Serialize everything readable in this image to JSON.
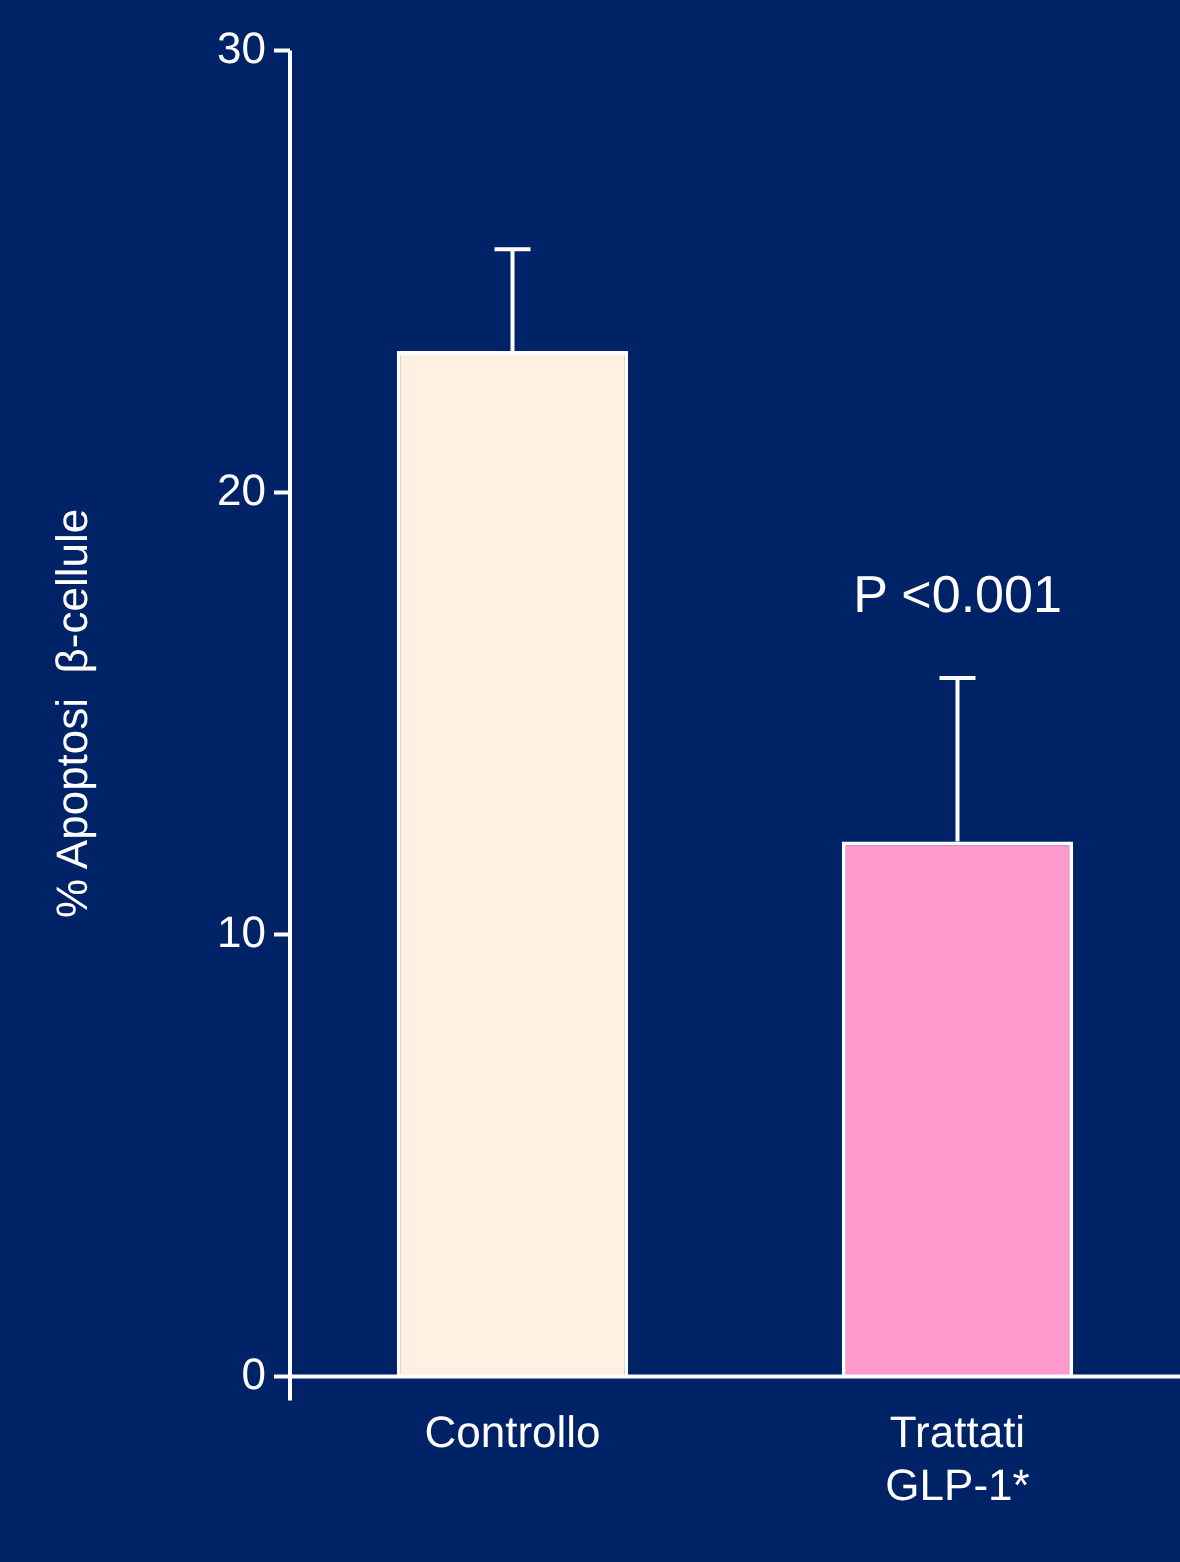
{
  "chart_data": {
    "type": "bar",
    "ylabel": "% Apoptosi  β-cellule",
    "categories": [
      "Controllo",
      "Trattati GLP-1*"
    ],
    "values": [
      23.2,
      12.1
    ],
    "colors": [
      "#fff0e2",
      "#ff99cc"
    ],
    "errors": [
      [
        23.2,
        25.5
      ],
      [
        12.1,
        15.8
      ]
    ],
    "ylim": [
      0,
      30
    ],
    "yticks": [
      0,
      10,
      20,
      30
    ],
    "grid": false,
    "legend": false,
    "annotations": [
      "P <0.001"
    ]
  }
}
